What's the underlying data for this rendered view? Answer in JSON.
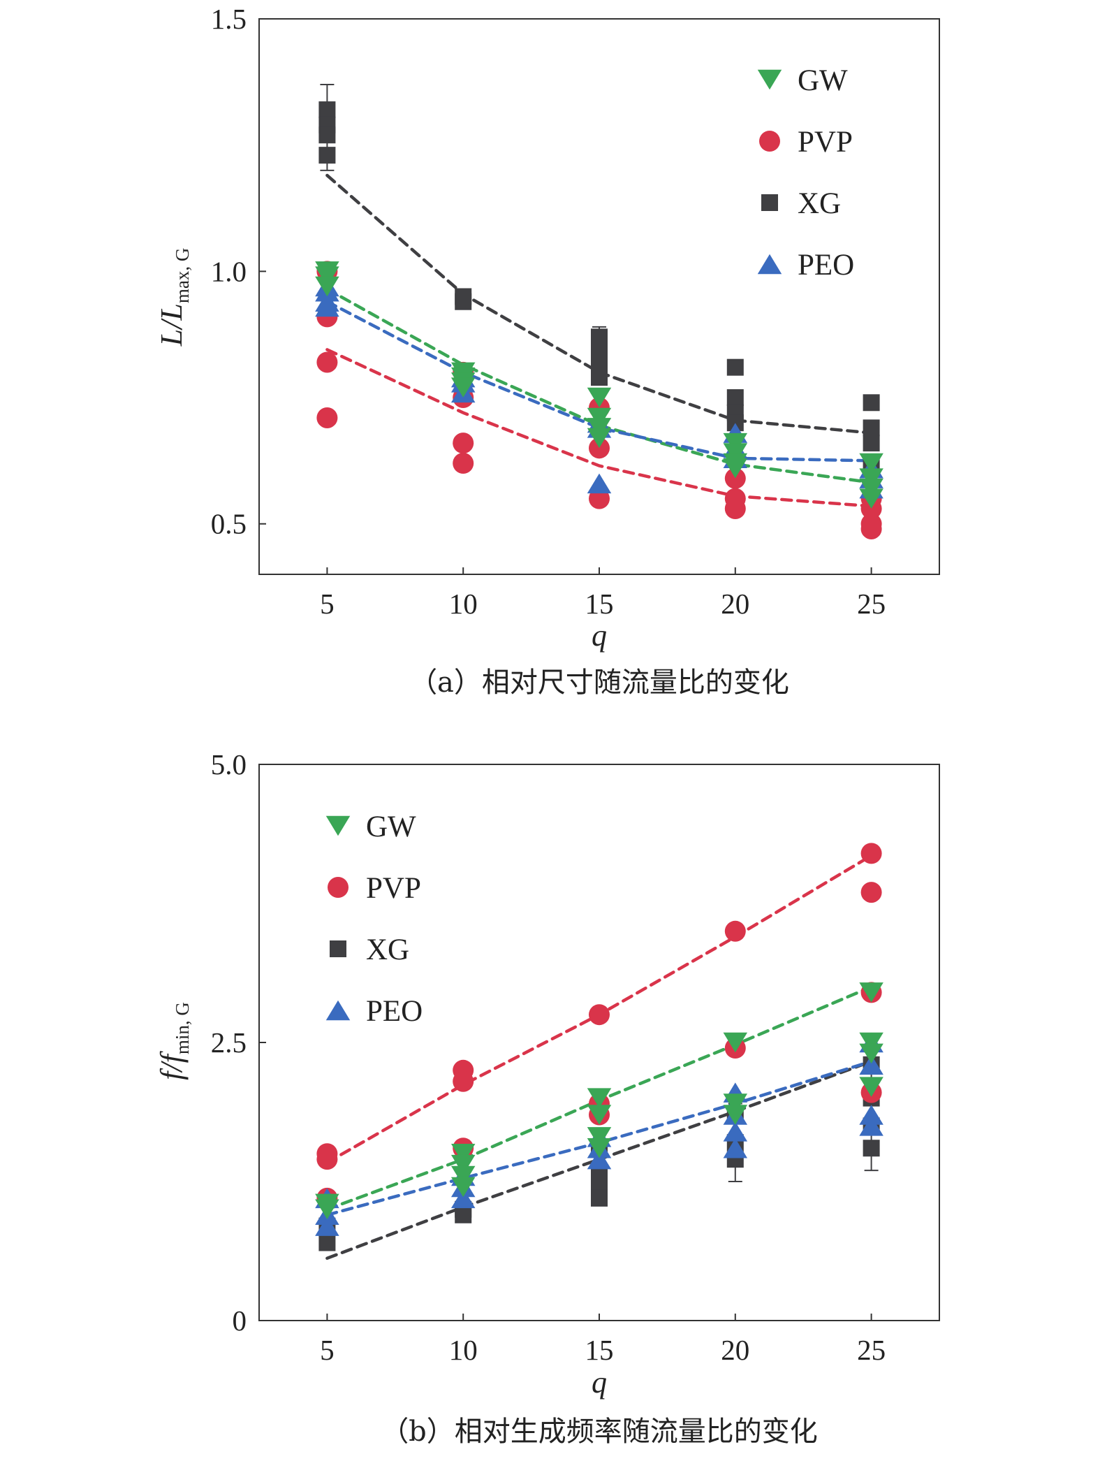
{
  "chart_data": [
    {
      "type": "scatter",
      "caption": "（a）相对尺寸随流量比的变化",
      "xlabel": "q",
      "ylabel_main": "L/L",
      "ylabel_sub": "max, G",
      "xlim": [
        2.5,
        27.5
      ],
      "ylim": [
        0.4,
        1.5
      ],
      "x_ticks": [
        5,
        10,
        15,
        20,
        25
      ],
      "x_tick_labels": [
        "5",
        "10",
        "15",
        "20",
        "25"
      ],
      "y_ticks": [
        0.5,
        1.0,
        1.5
      ],
      "y_tick_labels": [
        "0.5",
        "1.0",
        "1.5"
      ],
      "grid": false,
      "legend_position": "top-right",
      "series": [
        {
          "name": "GW",
          "marker": "triangle-down",
          "color": "#3aa655",
          "points": [
            [
              5,
              1.0
            ],
            [
              5,
              0.99
            ],
            [
              5,
              0.97
            ],
            [
              10,
              0.8
            ],
            [
              10,
              0.79
            ],
            [
              10,
              0.78
            ],
            [
              10,
              0.77
            ],
            [
              15,
              0.75
            ],
            [
              15,
              0.71
            ],
            [
              15,
              0.69
            ],
            [
              15,
              0.67
            ],
            [
              20,
              0.66
            ],
            [
              20,
              0.64
            ],
            [
              20,
              0.62
            ],
            [
              20,
              0.61
            ],
            [
              25,
              0.62
            ],
            [
              25,
              0.59
            ],
            [
              25,
              0.57
            ],
            [
              25,
              0.55
            ]
          ],
          "fit": [
            [
              5,
              0.965
            ],
            [
              10,
              0.815
            ],
            [
              15,
              0.695
            ],
            [
              20,
              0.618
            ],
            [
              25,
              0.582
            ]
          ]
        },
        {
          "name": "PVP",
          "marker": "circle",
          "color": "#d9344a",
          "points": [
            [
              5,
              1.0
            ],
            [
              5,
              0.91
            ],
            [
              5,
              0.82
            ],
            [
              5,
              0.71
            ],
            [
              10,
              0.8
            ],
            [
              10,
              0.75
            ],
            [
              10,
              0.66
            ],
            [
              10,
              0.62
            ],
            [
              15,
              0.73
            ],
            [
              15,
              0.65
            ],
            [
              15,
              0.55
            ],
            [
              20,
              0.59
            ],
            [
              20,
              0.55
            ],
            [
              20,
              0.53
            ],
            [
              25,
              0.55
            ],
            [
              25,
              0.53
            ],
            [
              25,
              0.5
            ],
            [
              25,
              0.49
            ]
          ],
          "fit": [
            [
              5,
              0.845
            ],
            [
              10,
              0.72
            ],
            [
              15,
              0.615
            ],
            [
              20,
              0.555
            ],
            [
              25,
              0.535
            ]
          ]
        },
        {
          "name": "XG",
          "marker": "square",
          "color": "#3f3f42",
          "points": [
            [
              5,
              1.32
            ],
            [
              5,
              1.29
            ],
            [
              5,
              1.27
            ],
            [
              5,
              1.23
            ],
            [
              10,
              0.95
            ],
            [
              10,
              0.94
            ],
            [
              15,
              0.87
            ],
            [
              15,
              0.84
            ],
            [
              15,
              0.82
            ],
            [
              15,
              0.79
            ],
            [
              20,
              0.81
            ],
            [
              20,
              0.75
            ],
            [
              20,
              0.72
            ],
            [
              20,
              0.7
            ],
            [
              25,
              0.74
            ],
            [
              25,
              0.69
            ],
            [
              25,
              0.66
            ],
            [
              25,
              0.62
            ]
          ],
          "error_caps": [
            [
              5,
              1.37,
              1.2
            ],
            [
              15,
              0.89,
              0.78
            ]
          ],
          "fit": [
            [
              5,
              1.19
            ],
            [
              10,
              0.955
            ],
            [
              15,
              0.8
            ],
            [
              20,
              0.705
            ],
            [
              25,
              0.68
            ]
          ]
        },
        {
          "name": "PEO",
          "marker": "triangle-up",
          "color": "#3a6bbf",
          "points": [
            [
              5,
              0.97
            ],
            [
              5,
              0.96
            ],
            [
              5,
              0.94
            ],
            [
              5,
              0.93
            ],
            [
              10,
              0.79
            ],
            [
              10,
              0.78
            ],
            [
              10,
              0.76
            ],
            [
              15,
              0.7
            ],
            [
              15,
              0.69
            ],
            [
              15,
              0.58
            ],
            [
              20,
              0.68
            ],
            [
              20,
              0.65
            ],
            [
              20,
              0.63
            ],
            [
              25,
              0.61
            ],
            [
              25,
              0.59
            ],
            [
              25,
              0.57
            ]
          ],
          "fit": [
            [
              5,
              0.94
            ],
            [
              10,
              0.8
            ],
            [
              15,
              0.69
            ],
            [
              20,
              0.63
            ],
            [
              25,
              0.625
            ]
          ]
        }
      ]
    },
    {
      "type": "scatter",
      "caption": "（b）相对生成频率随流量比的变化",
      "xlabel": "q",
      "ylabel_main": "f/f",
      "ylabel_sub": "min, G",
      "xlim": [
        2.5,
        27.5
      ],
      "ylim": [
        0,
        5.0
      ],
      "x_ticks": [
        5,
        10,
        15,
        20,
        25
      ],
      "x_tick_labels": [
        "5",
        "10",
        "15",
        "20",
        "25"
      ],
      "y_ticks": [
        0,
        2.5,
        5.0
      ],
      "y_tick_labels": [
        "0",
        "2.5",
        "5.0"
      ],
      "grid": false,
      "legend_position": "top-left",
      "series": [
        {
          "name": "GW",
          "marker": "triangle-down",
          "color": "#3aa655",
          "points": [
            [
              5,
              1.05
            ],
            [
              5,
              1.0
            ],
            [
              10,
              1.5
            ],
            [
              10,
              1.4
            ],
            [
              10,
              1.3
            ],
            [
              10,
              1.2
            ],
            [
              15,
              2.0
            ],
            [
              15,
              1.85
            ],
            [
              15,
              1.65
            ],
            [
              15,
              1.55
            ],
            [
              20,
              2.5
            ],
            [
              20,
              1.95
            ],
            [
              20,
              1.85
            ],
            [
              25,
              2.95
            ],
            [
              25,
              2.5
            ],
            [
              25,
              2.4
            ],
            [
              25,
              2.1
            ]
          ],
          "fit": [
            [
              5,
              1.0
            ],
            [
              10,
              1.45
            ],
            [
              15,
              1.98
            ],
            [
              20,
              2.48
            ],
            [
              25,
              3.0
            ]
          ]
        },
        {
          "name": "PVP",
          "marker": "circle",
          "color": "#d9344a",
          "points": [
            [
              5,
              1.5
            ],
            [
              5,
              1.45
            ],
            [
              5,
              1.1
            ],
            [
              10,
              2.25
            ],
            [
              10,
              2.15
            ],
            [
              10,
              1.55
            ],
            [
              15,
              2.75
            ],
            [
              15,
              1.95
            ],
            [
              15,
              1.85
            ],
            [
              20,
              3.5
            ],
            [
              20,
              2.45
            ],
            [
              25,
              4.2
            ],
            [
              25,
              3.85
            ],
            [
              25,
              2.95
            ],
            [
              25,
              2.05
            ]
          ],
          "fit": [
            [
              5,
              1.42
            ],
            [
              10,
              2.12
            ],
            [
              15,
              2.75
            ],
            [
              20,
              3.45
            ],
            [
              25,
              4.18
            ]
          ]
        },
        {
          "name": "XG",
          "marker": "square",
          "color": "#3f3f42",
          "points": [
            [
              5,
              0.85
            ],
            [
              5,
              0.7
            ],
            [
              10,
              1.0
            ],
            [
              10,
              0.95
            ],
            [
              15,
              1.55
            ],
            [
              15,
              1.3
            ],
            [
              15,
              1.2
            ],
            [
              15,
              1.1
            ],
            [
              20,
              1.85
            ],
            [
              20,
              1.6
            ],
            [
              20,
              1.45
            ],
            [
              25,
              2.3
            ],
            [
              25,
              2.0
            ],
            [
              25,
              1.75
            ],
            [
              25,
              1.55
            ]
          ],
          "error_caps": [
            [
              20,
              1.95,
              1.25
            ],
            [
              25,
              2.35,
              1.35
            ]
          ],
          "fit": [
            [
              5,
              0.56
            ],
            [
              10,
              1.02
            ],
            [
              15,
              1.45
            ],
            [
              20,
              1.88
            ],
            [
              25,
              2.33
            ]
          ]
        },
        {
          "name": "PEO",
          "marker": "triangle-up",
          "color": "#3a6bbf",
          "points": [
            [
              5,
              1.1
            ],
            [
              5,
              0.95
            ],
            [
              5,
              0.85
            ],
            [
              10,
              1.3
            ],
            [
              10,
              1.2
            ],
            [
              10,
              1.1
            ],
            [
              15,
              1.65
            ],
            [
              15,
              1.55
            ],
            [
              15,
              1.45
            ],
            [
              20,
              2.05
            ],
            [
              20,
              1.85
            ],
            [
              20,
              1.7
            ],
            [
              20,
              1.55
            ],
            [
              25,
              2.5
            ],
            [
              25,
              2.3
            ],
            [
              25,
              1.85
            ],
            [
              25,
              1.75
            ]
          ],
          "fit": [
            [
              5,
              0.95
            ],
            [
              10,
              1.28
            ],
            [
              15,
              1.6
            ],
            [
              20,
              1.95
            ],
            [
              25,
              2.33
            ]
          ]
        }
      ]
    }
  ]
}
